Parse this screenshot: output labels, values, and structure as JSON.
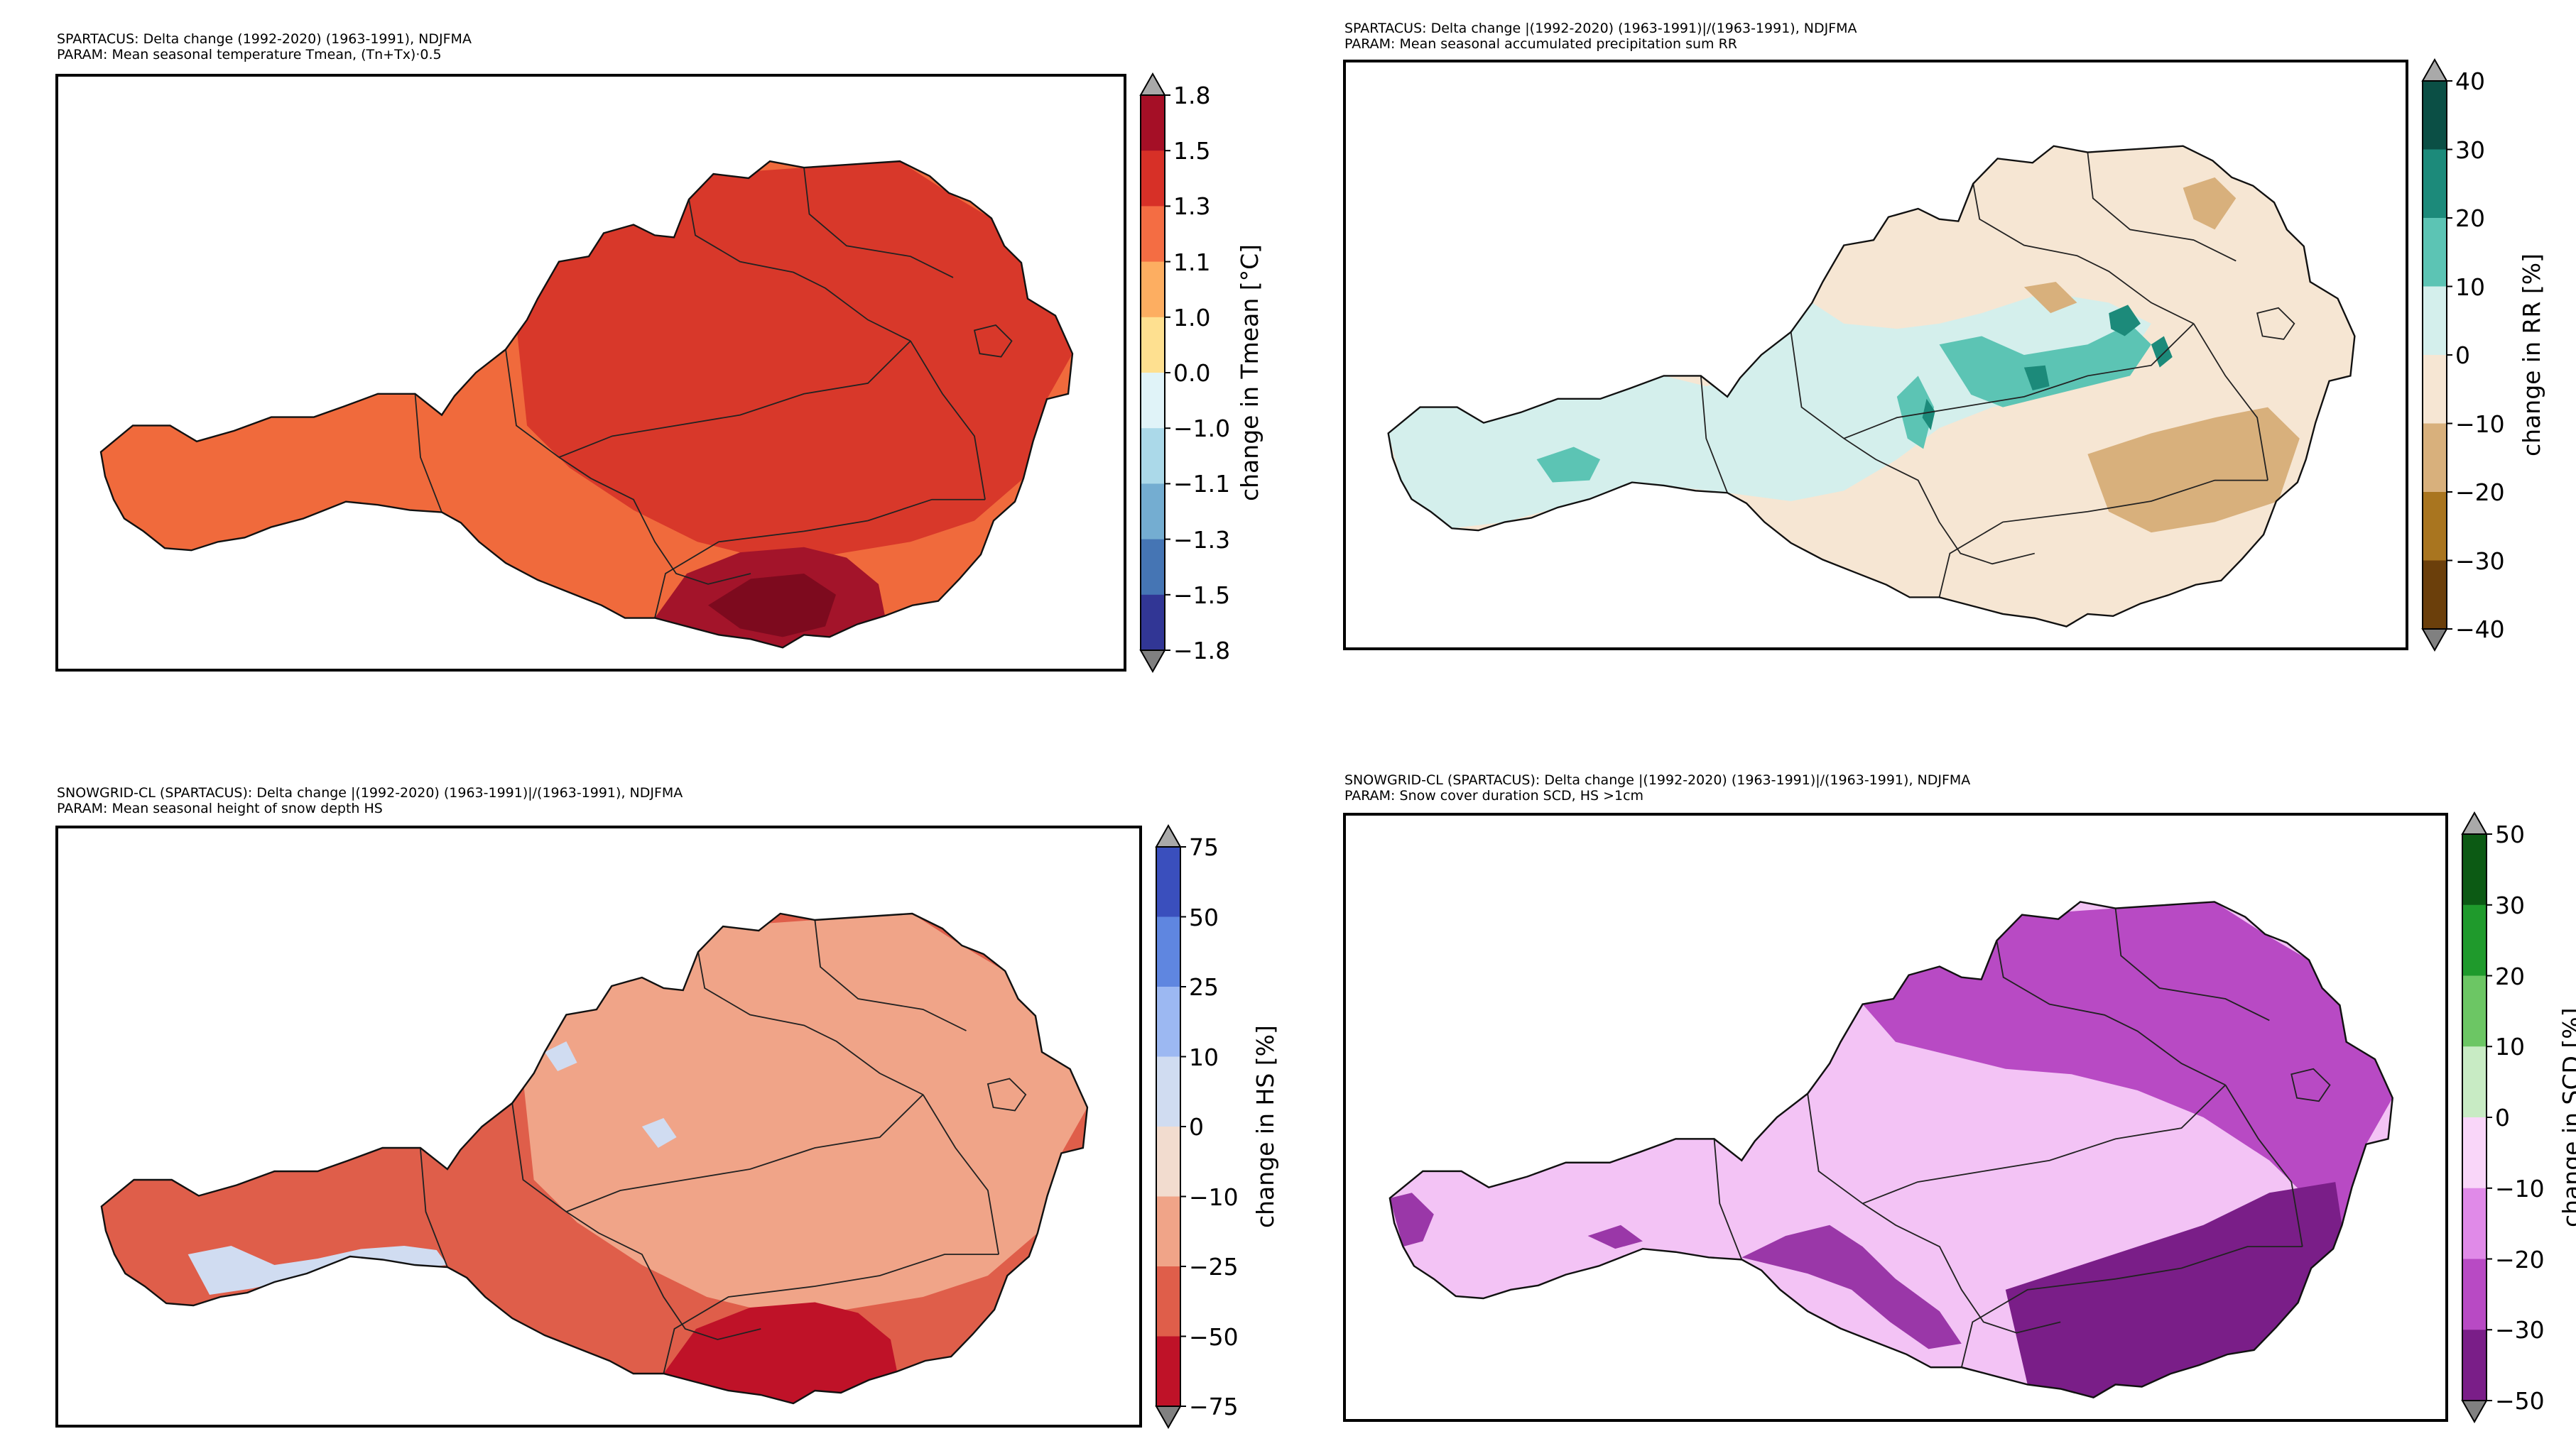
{
  "panels": [
    {
      "id": "tmean",
      "title_line1": "SPARTACUS: Delta change (1992-2020)   (1963-1991), NDJFMA",
      "title_line2": "PARAM: Mean seasonal temperature Tmean, (Tn+Tx)·0.5",
      "colorbar_label": "change in Tmean [°C]",
      "ticks": [
        "1.8",
        "1.5",
        "1.3",
        "1.1",
        "1.0",
        "0.0",
        "−1.0",
        "−1.1",
        "−1.3",
        "−1.5",
        "−1.8"
      ],
      "colors": [
        "#a50f26",
        "#d73027",
        "#f46d43",
        "#fdae61",
        "#fee090",
        "#e0f3f8",
        "#abd9e9",
        "#74add1",
        "#4575b4",
        "#313695"
      ],
      "ext_top": "#a9a9a9",
      "ext_bottom": "#808080",
      "map_base": "#f06a3c",
      "map_fill": [
        {
          "region": "north-east",
          "color": "#d8382a"
        },
        {
          "region": "south",
          "color": "#a3142a"
        },
        {
          "region": "south-deep",
          "color": "#7d0a1e"
        }
      ]
    },
    {
      "id": "rr",
      "title_line1": "SPARTACUS: Delta change |(1992-2020)   (1963-1991)|/(1963-1991), NDJFMA",
      "title_line2": "PARAM: Mean seasonal accumulated precipitation sum RR",
      "colorbar_label": "change in RR [%]",
      "ticks": [
        "40",
        "30",
        "20",
        "10",
        "0",
        "−10",
        "−20",
        "−30",
        "−40"
      ],
      "colors": [
        "#0b4f45",
        "#1c8a7a",
        "#5cc4b4",
        "#d4efec",
        "#f6e6d3",
        "#d8b07c",
        "#a9751f",
        "#6b3f0b"
      ],
      "ext_top": "#a9a9a9",
      "ext_bottom": "#808080",
      "map_base": "#f6e6d3",
      "map_fill": [
        {
          "region": "west-central",
          "color": "#d4efec"
        },
        {
          "region": "spots",
          "color": "#5cc4b4"
        },
        {
          "region": "dark-spots",
          "color": "#1c8a7a"
        },
        {
          "region": "east-dry",
          "color": "#d8b07c"
        }
      ]
    },
    {
      "id": "hs",
      "title_line1": "SNOWGRID-CL (SPARTACUS): Delta change |(1992-2020)   (1963-1991)|/(1963-1991), NDJFMA",
      "title_line2": "PARAM: Mean seasonal height of snow depth HS",
      "colorbar_label": "change in HS [%]",
      "ticks": [
        "75",
        "50",
        "25",
        "10",
        "0",
        "−10",
        "−25",
        "−50",
        "−75"
      ],
      "colors": [
        "#3a4fbd",
        "#5f86e0",
        "#9cb8f2",
        "#d0dcf1",
        "#f2dccf",
        "#f0a488",
        "#df5e4a",
        "#bf1228"
      ],
      "ext_top": "#a9a9a9",
      "ext_bottom": "#808080",
      "map_base": "#df5e4a",
      "map_fill": [
        {
          "region": "north-east",
          "color": "#f0a488"
        },
        {
          "region": "alpine-light",
          "color": "#d0dcf1"
        },
        {
          "region": "south",
          "color": "#bf1228"
        }
      ]
    },
    {
      "id": "scd",
      "title_line1": "SNOWGRID-CL (SPARTACUS): Delta change |(1992-2020)   (1963-1991)|/(1963-1991), NDJFMA",
      "title_line2": "PARAM: Snow cover duration SCD, HS >1cm",
      "colorbar_label": "change in SCD [%]",
      "ticks": [
        "50",
        "30",
        "20",
        "10",
        "0",
        "−10",
        "−20",
        "−30",
        "−50"
      ],
      "colors": [
        "#0c5a14",
        "#1f9a2c",
        "#6cc664",
        "#c8ebc4",
        "#f9d6f9",
        "#e08ae8",
        "#b84ac4",
        "#7a1e88"
      ],
      "ext_top": "#a9a9a9",
      "ext_bottom": "#808080",
      "map_base": "#f3c3f5",
      "map_fill": [
        {
          "region": "north",
          "color": "#b84ac4"
        },
        {
          "region": "south-east",
          "color": "#7a1e88"
        },
        {
          "region": "valleys",
          "color": "#9a37a8"
        }
      ]
    }
  ]
}
